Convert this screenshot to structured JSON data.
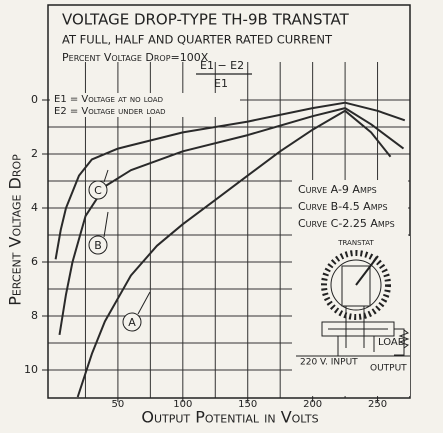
{
  "chart_data": {
    "type": "line",
    "title": "VOLTAGE DROP-TYPE TH-9B TRANSTAT",
    "subtitle": "AT FULL, HALF AND QUARTER RATED CURRENT",
    "formula": {
      "left": "Percent Voltage Drop=100X",
      "numerator": "E1 − E2",
      "denominator": "E1"
    },
    "definitions": [
      "E1 = Voltage at no load",
      "E2 = Voltage under load"
    ],
    "legend_notes": [
      "Curve A-9 Amps",
      "Curve B-4.5 Amps",
      "Curve C-2.25 Amps"
    ],
    "diagram_labels": {
      "device": "TRANSTAT",
      "load": "LOAD",
      "input": "220 V. INPUT",
      "output": "OUTPUT"
    },
    "xlabel": "Output Potential in Volts",
    "ylabel": "Percent Voltage Drop",
    "xlim": [
      0,
      275
    ],
    "ylim": [
      0,
      11
    ],
    "y_inverted": true,
    "xticks": [
      50,
      100,
      150,
      200,
      250
    ],
    "yticks": [
      0,
      2,
      4,
      6,
      8,
      10
    ],
    "xgrid": [
      25,
      50,
      75,
      100,
      125,
      150,
      175,
      200,
      225,
      250
    ],
    "ygrid": [
      0,
      1,
      2,
      3,
      4,
      5,
      6,
      7,
      8,
      9,
      10
    ],
    "grid": true,
    "series": [
      {
        "name": "A",
        "color": "#2a2a2a",
        "x": [
          19,
          30,
          40,
          60,
          80,
          100,
          125,
          150,
          175,
          200,
          225,
          245,
          260
        ],
        "values": [
          11,
          9.4,
          8.2,
          6.5,
          5.4,
          4.6,
          3.7,
          2.8,
          1.9,
          1.1,
          0.4,
          1.2,
          2.1
        ]
      },
      {
        "name": "B",
        "color": "#2a2a2a",
        "x": [
          5,
          10,
          15,
          25,
          40,
          60,
          100,
          150,
          200,
          225,
          245,
          270
        ],
        "values": [
          8.7,
          7.2,
          6,
          4.3,
          3.2,
          2.6,
          1.9,
          1.3,
          0.6,
          0.3,
          0.9,
          1.8
        ]
      },
      {
        "name": "C",
        "color": "#2a2a2a",
        "x": [
          2,
          6,
          10,
          20,
          30,
          50,
          100,
          150,
          200,
          225,
          250,
          271
        ],
        "values": [
          5.9,
          4.8,
          4,
          2.8,
          2.2,
          1.8,
          1.2,
          0.8,
          0.3,
          0.1,
          0.4,
          0.75
        ]
      }
    ]
  }
}
